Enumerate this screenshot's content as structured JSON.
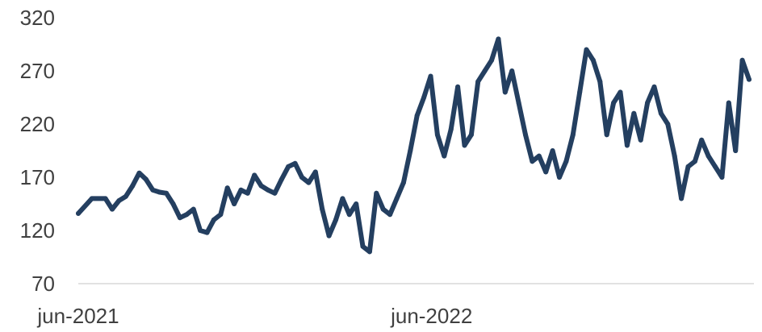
{
  "chart_data": {
    "type": "line",
    "title": "",
    "xlabel": "",
    "ylabel": "",
    "ylim": [
      70,
      320
    ],
    "y_ticks": [
      70,
      120,
      170,
      220,
      270,
      320
    ],
    "x_range": [
      "2021-06-01",
      "2023-04-30"
    ],
    "x_ticks": [
      {
        "date": "2021-06-01",
        "label": "jun-2021"
      },
      {
        "date": "2022-06-01",
        "label": "jun-2022"
      }
    ],
    "grid": false,
    "legend": "none",
    "line_color": "#243f60",
    "axis_color": "#d9d9d9",
    "series": [
      {
        "x": [
          "2021-06-01",
          "2021-06-15",
          "2021-06-29",
          "2021-07-06",
          "2021-07-13",
          "2021-07-20",
          "2021-07-27",
          "2021-08-03",
          "2021-08-10",
          "2021-08-17",
          "2021-08-24",
          "2021-08-31",
          "2021-09-07",
          "2021-09-14",
          "2021-09-21",
          "2021-09-28",
          "2021-10-05",
          "2021-10-12",
          "2021-10-19",
          "2021-10-26",
          "2021-11-02",
          "2021-11-09",
          "2021-11-16",
          "2021-11-23",
          "2021-11-30",
          "2021-12-07",
          "2021-12-14",
          "2021-12-21",
          "2021-12-28",
          "2022-01-04",
          "2022-01-11",
          "2022-01-18",
          "2022-01-25",
          "2022-02-01",
          "2022-02-08",
          "2022-02-15",
          "2022-02-22",
          "2022-03-01",
          "2022-03-08",
          "2022-03-15",
          "2022-03-22",
          "2022-03-29",
          "2022-04-05",
          "2022-04-12",
          "2022-04-19",
          "2022-04-26",
          "2022-05-03",
          "2022-05-10",
          "2022-05-17",
          "2022-05-24",
          "2022-05-31",
          "2022-06-07",
          "2022-06-14",
          "2022-06-21",
          "2022-06-28",
          "2022-07-05",
          "2022-07-12",
          "2022-07-19",
          "2022-07-26",
          "2022-08-02",
          "2022-08-09",
          "2022-08-16",
          "2022-08-23",
          "2022-08-30",
          "2022-09-06",
          "2022-09-13",
          "2022-09-20",
          "2022-09-27",
          "2022-10-04",
          "2022-10-11",
          "2022-10-18",
          "2022-10-25",
          "2022-11-01",
          "2022-11-08",
          "2022-11-15",
          "2022-11-22",
          "2022-11-29",
          "2022-12-06",
          "2022-12-13",
          "2022-12-20",
          "2022-12-27",
          "2023-01-03",
          "2023-01-10",
          "2023-01-17",
          "2023-01-24",
          "2023-01-31",
          "2023-02-07",
          "2023-02-14",
          "2023-02-21",
          "2023-02-28",
          "2023-03-07",
          "2023-03-14",
          "2023-03-21",
          "2023-03-28",
          "2023-04-04",
          "2023-04-11",
          "2023-04-18",
          "2023-04-25"
        ],
        "values": [
          136,
          150,
          150,
          140,
          148,
          152,
          162,
          174,
          168,
          158,
          156,
          155,
          145,
          132,
          135,
          140,
          120,
          118,
          130,
          135,
          160,
          145,
          158,
          155,
          172,
          162,
          158,
          155,
          168,
          180,
          183,
          170,
          165,
          175,
          140,
          115,
          130,
          150,
          135,
          145,
          105,
          100,
          155,
          140,
          135,
          150,
          165,
          195,
          228,
          245,
          265,
          210,
          190,
          215,
          255,
          200,
          210,
          260,
          270,
          280,
          300,
          250,
          270,
          240,
          210,
          185,
          190,
          175,
          195,
          170,
          185,
          210,
          250,
          290,
          280,
          260,
          210,
          240,
          250,
          200,
          230,
          205,
          240,
          255,
          230,
          220,
          190,
          150,
          180,
          185,
          205,
          190,
          180,
          170,
          240,
          195,
          280,
          262
        ]
      }
    ]
  }
}
